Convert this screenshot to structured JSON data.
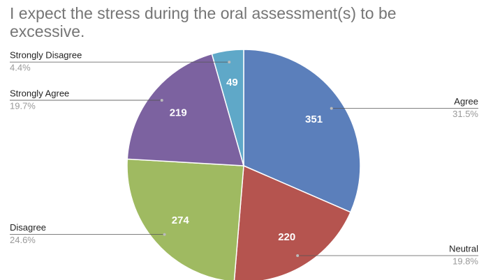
{
  "chart_data": {
    "type": "pie",
    "title": "I expect the stress during the oral assessment(s) to be excessive.",
    "categories": [
      "Agree",
      "Neutral",
      "Disagree",
      "Strongly Agree",
      "Strongly Disagree"
    ],
    "values": [
      351,
      220,
      274,
      219,
      49
    ],
    "percent_labels": [
      "31.5%",
      "19.8%",
      "24.6%",
      "19.7%",
      "4.4%"
    ],
    "colors": [
      "#5b7fbb",
      "#b5544f",
      "#9fba61",
      "#7c62a0",
      "#5fa8c8"
    ]
  }
}
